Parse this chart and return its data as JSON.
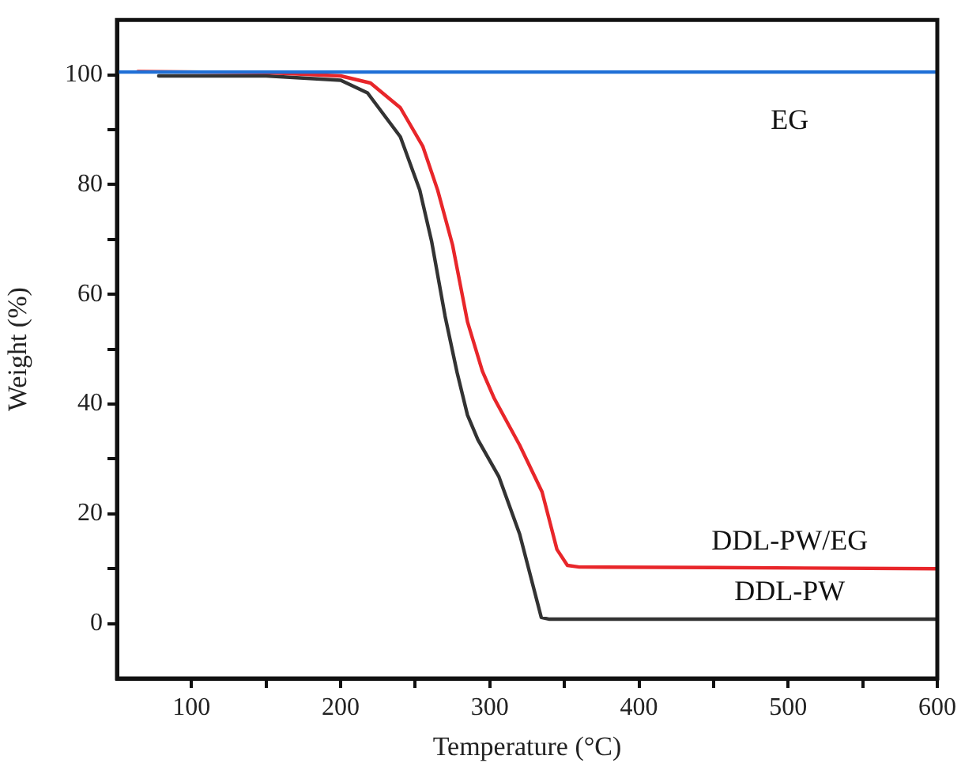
{
  "chart_data": {
    "type": "line",
    "xlabel": "Temperature (°C)",
    "ylabel": "Weight (%)",
    "xlim": [
      50,
      600
    ],
    "ylim": [
      -10,
      110
    ],
    "xticks": [
      100,
      {
        "value": 150,
        "label": null
      },
      200,
      {
        "value": 250,
        "label": null
      },
      300,
      {
        "value": 350,
        "label": null
      },
      400,
      {
        "value": 450,
        "label": null
      },
      500,
      {
        "value": 550,
        "label": null
      },
      600
    ],
    "yticks": [
      0,
      {
        "value": 10,
        "label": null
      },
      20,
      {
        "value": 30,
        "label": null
      },
      40,
      {
        "value": 50,
        "label": null
      },
      60,
      {
        "value": 70,
        "label": null
      },
      80,
      {
        "value": 90,
        "label": null
      },
      100
    ],
    "grid": false,
    "legend": false,
    "series": [
      {
        "name": "EG",
        "color": "#1f6fd6",
        "x": [
          50,
          600
        ],
        "values": [
          100.5,
          100.5
        ]
      },
      {
        "name": "DDL-PW/EG",
        "color": "#e8262a",
        "x": [
          64,
          150,
          200,
          220,
          240,
          255,
          265,
          275,
          285,
          295,
          303,
          320,
          335,
          345,
          352,
          360,
          450,
          600
        ],
        "values": [
          100.6,
          100.4,
          99.8,
          98.5,
          94,
          87,
          79,
          69,
          55,
          46,
          41,
          32.5,
          24,
          13.5,
          10.6,
          10.3,
          10.2,
          10
        ]
      },
      {
        "name": "DDL-PW",
        "color": "#333333",
        "x": [
          78,
          150,
          200,
          218,
          240,
          253,
          261,
          270,
          278,
          285,
          292,
          306,
          320,
          334.5,
          340,
          600
        ],
        "values": [
          99.8,
          99.8,
          99,
          96.7,
          88.7,
          79,
          69.6,
          56,
          45.8,
          38,
          33.5,
          26.8,
          16.3,
          1.1,
          0.8,
          0.8
        ]
      }
    ]
  }
}
